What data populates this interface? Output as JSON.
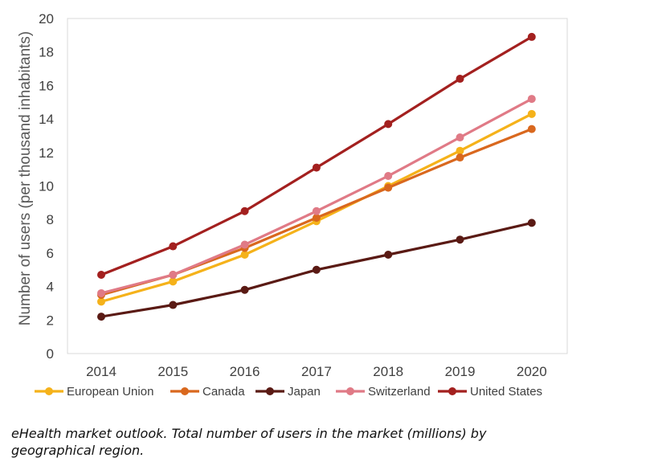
{
  "chart_data": {
    "type": "line",
    "title": "",
    "xlabel": "",
    "ylabel": "Number of users (per thousand inhabitants)",
    "categories": [
      "2014",
      "2015",
      "2016",
      "2017",
      "2018",
      "2019",
      "2020"
    ],
    "ylim": [
      0,
      20
    ],
    "yticks": [
      "0",
      "2",
      "4",
      "6",
      "8",
      "10",
      "12",
      "14",
      "16",
      "18",
      "20"
    ],
    "grid": false,
    "legend_position": "bottom",
    "series": [
      {
        "name": "European Union",
        "color": "#F5B21A",
        "values": [
          3.1,
          4.3,
          5.9,
          7.9,
          10.0,
          12.1,
          14.3
        ]
      },
      {
        "name": "Canada",
        "color": "#D9681E",
        "values": [
          3.5,
          4.7,
          6.3,
          8.1,
          9.9,
          11.7,
          13.4
        ]
      },
      {
        "name": "Japan",
        "color": "#5A1A14",
        "values": [
          2.2,
          2.9,
          3.8,
          5.0,
          5.9,
          6.8,
          7.8
        ]
      },
      {
        "name": "Switzerland",
        "color": "#E07A86",
        "values": [
          3.6,
          4.7,
          6.5,
          8.5,
          10.6,
          12.9,
          15.2
        ]
      },
      {
        "name": "United States",
        "color": "#A3201F",
        "values": [
          4.7,
          6.4,
          8.5,
          11.1,
          13.7,
          16.4,
          18.9
        ]
      }
    ]
  },
  "caption": "eHealth market outlook. Total number of users in the market (millions) by geographical region."
}
